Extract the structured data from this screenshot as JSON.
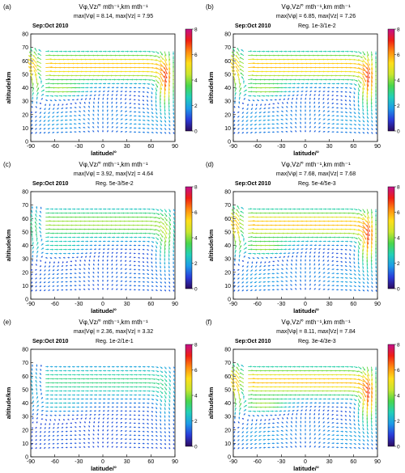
{
  "figure": {
    "colorbar_ticks": [
      "8",
      "6",
      "4",
      "2",
      "0"
    ],
    "colors": {
      "colormap": [
        "#2d0a5e",
        "#2a3bd9",
        "#1e9be8",
        "#22d0b8",
        "#49d64c",
        "#c9e62f",
        "#ffde1a",
        "#ff8a10",
        "#f01e14",
        "#c2108c"
      ]
    }
  },
  "chart_data": [
    {
      "type": "quiver",
      "panel_label": "(a)",
      "title": "Vφ,Vz/° mth⁻¹,km mth⁻¹",
      "stats": "max|Vφ| = 8.14, max|Vz| = 7.95",
      "period": "Sep:Oct 2010",
      "reg": "",
      "xlabel": "latitude/°",
      "ylabel": "altitude/km",
      "xlim": [
        -90,
        90
      ],
      "ylim": [
        0,
        80
      ],
      "xticks": [
        "-90",
        "-60",
        "-30",
        "0",
        "30",
        "60",
        "90"
      ],
      "yticks": [
        "0",
        "10",
        "20",
        "30",
        "40",
        "50",
        "60",
        "70",
        "80"
      ],
      "pattern": "full",
      "max_speed": 8.14,
      "colorbar_range": [
        0,
        8
      ]
    },
    {
      "type": "quiver",
      "panel_label": "(b)",
      "title": "Vφ,Vz/° mth⁻¹,km mth⁻¹",
      "stats": "max|Vφ| = 6.85, max|Vz| = 7.26",
      "period": "Sep:Oct 2010",
      "reg": "Reg. 1e-3/1e-2",
      "xlabel": "latitude/°",
      "ylabel": "altitude/km",
      "xlim": [
        -90,
        90
      ],
      "ylim": [
        0,
        80
      ],
      "xticks": [
        "-90",
        "-60",
        "-30",
        "0",
        "30",
        "60",
        "90"
      ],
      "yticks": [
        "0",
        "10",
        "20",
        "30",
        "40",
        "50",
        "60",
        "70",
        "80"
      ],
      "pattern": "full",
      "max_speed": 7.26,
      "colorbar_range": [
        0,
        8
      ]
    },
    {
      "type": "quiver",
      "panel_label": "(c)",
      "title": "Vφ,Vz/° mth⁻¹,km mth⁻¹",
      "stats": "max|Vφ| = 3.92, max|Vz| = 4.64",
      "period": "Sep:Oct 2010",
      "reg": "Reg. 5e-3/5e-2",
      "xlabel": "latitude/°",
      "ylabel": "altitude/km",
      "xlim": [
        -90,
        90
      ],
      "ylim": [
        0,
        80
      ],
      "xticks": [
        "-90",
        "-60",
        "-30",
        "0",
        "30",
        "60",
        "90"
      ],
      "yticks": [
        "0",
        "10",
        "20",
        "30",
        "40",
        "50",
        "60",
        "70",
        "80"
      ],
      "pattern": "smooth",
      "max_speed": 4.64,
      "colorbar_range": [
        0,
        8
      ]
    },
    {
      "type": "quiver",
      "panel_label": "(d)",
      "title": "Vφ,Vz/° mth⁻¹,km mth⁻¹",
      "stats": "max|Vφ| = 7.68, max|Vz| = 7.68",
      "period": "Sep:Oct 2010",
      "reg": "Reg. 5e-4/5e-3",
      "xlabel": "latitude/°",
      "ylabel": "altitude/km",
      "xlim": [
        -90,
        90
      ],
      "ylim": [
        0,
        80
      ],
      "xticks": [
        "-90",
        "-60",
        "-30",
        "0",
        "30",
        "60",
        "90"
      ],
      "yticks": [
        "0",
        "10",
        "20",
        "30",
        "40",
        "50",
        "60",
        "70",
        "80"
      ],
      "pattern": "full",
      "max_speed": 7.68,
      "colorbar_range": [
        0,
        8
      ]
    },
    {
      "type": "quiver",
      "panel_label": "(e)",
      "title": "Vφ,Vz/° mth⁻¹,km mth⁻¹",
      "stats": "max|Vφ| = 2.36, max|Vz| = 3.32",
      "period": "Sep:Oct 2010",
      "reg": "Reg. 1e-2/1e-1",
      "xlabel": "latitude/°",
      "ylabel": "altitude/km",
      "xlim": [
        -90,
        90
      ],
      "ylim": [
        0,
        80
      ],
      "xticks": [
        "-90",
        "-60",
        "-30",
        "0",
        "30",
        "60",
        "90"
      ],
      "yticks": [
        "0",
        "10",
        "20",
        "30",
        "40",
        "50",
        "60",
        "70",
        "80"
      ],
      "pattern": "weak",
      "max_speed": 3.32,
      "colorbar_range": [
        0,
        8
      ]
    },
    {
      "type": "quiver",
      "panel_label": "(f)",
      "title": "Vφ,Vz/° mth⁻¹,km mth⁻¹",
      "stats": "max|Vφ| = 8.11, max|Vz| = 7.84",
      "period": "Sep:Oct 2010",
      "reg": "Reg. 3e-4/3e-3",
      "xlabel": "latitude/°",
      "ylabel": "altitude/km",
      "xlim": [
        -90,
        90
      ],
      "ylim": [
        0,
        80
      ],
      "xticks": [
        "-90",
        "-60",
        "-30",
        "0",
        "30",
        "60",
        "90"
      ],
      "yticks": [
        "0",
        "10",
        "20",
        "30",
        "40",
        "50",
        "60",
        "70",
        "80"
      ],
      "pattern": "full",
      "max_speed": 8.11,
      "colorbar_range": [
        0,
        8
      ]
    }
  ]
}
